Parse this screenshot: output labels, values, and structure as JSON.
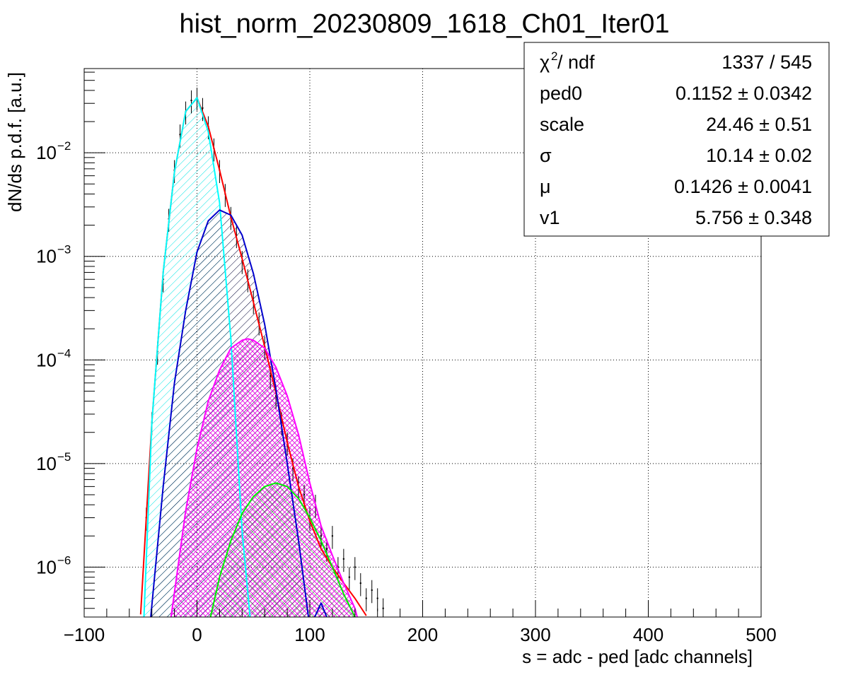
{
  "chart_data": {
    "type": "line",
    "title": "hist_norm_20230809_1618_Ch01_Iter01",
    "xlabel": "s = adc - ped [adc channels]",
    "ylabel": "dN/ds p.d.f. [a.u.]",
    "xlim": [
      -100,
      500
    ],
    "ylim": [
      3.3e-07,
      0.065
    ],
    "y_scale": "log",
    "grid": true,
    "x_ticks": [
      -100,
      0,
      100,
      200,
      300,
      400,
      500
    ],
    "x_tick_labels": [
      "−100",
      "0",
      "100",
      "200",
      "300",
      "400",
      "500"
    ],
    "y_ticks": [
      {
        "value": 1e-06,
        "base": "10",
        "exp": "−6"
      },
      {
        "value": 1e-05,
        "base": "10",
        "exp": "−5"
      },
      {
        "value": 0.0001,
        "base": "10",
        "exp": "−4"
      },
      {
        "value": 0.001,
        "base": "10",
        "exp": "−3"
      },
      {
        "value": 0.01,
        "base": "10",
        "exp": "−2"
      }
    ],
    "series": [
      {
        "color": "#ff0000",
        "style": "total-fit",
        "x": [
          -50,
          -40,
          -30,
          -20,
          -10,
          0,
          10,
          20,
          30,
          40,
          50,
          60,
          70,
          80,
          90,
          100,
          110,
          120,
          130,
          140,
          150
        ],
        "y": [
          3.5e-07,
          2.5e-05,
          0.0007,
          0.0065,
          0.025,
          0.034,
          0.018,
          0.0068,
          0.0024,
          0.00095,
          0.00036,
          0.000135,
          4.8e-05,
          1.6e-05,
          6e-06,
          2.8e-06,
          1.5e-06,
          1e-06,
          7e-07,
          5e-07,
          3.4e-07
        ]
      },
      {
        "color": "#00ffff",
        "style": "pedestal",
        "x": [
          -47,
          -40,
          -30,
          -20,
          -10,
          0,
          10,
          20,
          30,
          40,
          47
        ],
        "y": [
          3.3e-07,
          2.5e-05,
          0.0007,
          0.0065,
          0.025,
          0.034,
          0.016,
          0.0033,
          0.00016,
          2.2e-06,
          3.3e-07
        ]
      },
      {
        "color": "#0000cc",
        "style": "1-photon",
        "x": [
          -41,
          -30,
          -20,
          -10,
          0,
          10,
          20,
          30,
          40,
          50,
          60,
          70,
          80,
          90,
          100,
          110,
          115
        ],
        "y": [
          3.3e-07,
          6e-06,
          6e-05,
          0.0003,
          0.0011,
          0.0022,
          0.0028,
          0.0025,
          0.0016,
          0.00068,
          0.00022,
          5.2e-05,
          1e-05,
          1.8e-06,
          2.6e-07,
          4.5e-07,
          3.3e-07
        ]
      },
      {
        "color": "#ff00ff",
        "style": "2-photon",
        "x": [
          -23,
          -10,
          0,
          10,
          20,
          30,
          40,
          45,
          50,
          60,
          70,
          80,
          90,
          100,
          110,
          120,
          130,
          140,
          142
        ],
        "y": [
          3.3e-07,
          3.5e-06,
          1.4e-05,
          4e-05,
          8e-05,
          0.00013,
          0.000155,
          0.00016,
          0.000155,
          0.00013,
          8.5e-05,
          4.5e-05,
          1.9e-05,
          6.5e-06,
          2.5e-06,
          1.3e-06,
          7e-07,
          4e-07,
          3.3e-07
        ]
      },
      {
        "color": "#00ee00",
        "style": "3-photon",
        "x": [
          12,
          20,
          30,
          40,
          50,
          60,
          70,
          80,
          90,
          100,
          110,
          120,
          130,
          140
        ],
        "y": [
          3.3e-07,
          8e-07,
          1.8e-06,
          3.3e-06,
          4.8e-06,
          6e-06,
          6.5e-06,
          6e-06,
          4.6e-06,
          3e-06,
          1.8e-06,
          1e-06,
          5.5e-07,
          3.3e-07
        ]
      },
      {
        "color": "#000000",
        "style": "data-points",
        "x": [
          -45,
          -40,
          -35,
          -30,
          -25,
          -20,
          -15,
          -10,
          -5,
          0,
          5,
          10,
          15,
          20,
          25,
          30,
          35,
          40,
          45,
          50,
          55,
          60,
          65,
          70,
          75,
          80,
          85,
          90,
          95,
          100,
          105,
          110,
          115,
          120,
          125,
          130,
          135,
          140,
          145,
          150,
          155,
          160,
          165
        ],
        "y": [
          3e-06,
          2.5e-05,
          0.00012,
          0.0006,
          0.0023,
          0.0068,
          0.015,
          0.025,
          0.032,
          0.034,
          0.027,
          0.018,
          0.011,
          0.0068,
          0.004,
          0.0024,
          0.0016,
          0.0009,
          0.0006,
          0.00037,
          0.00023,
          0.000135,
          7e-05,
          4.5e-05,
          2.5e-05,
          1.6e-05,
          9e-06,
          6e-06,
          5e-06,
          3e-06,
          4e-06,
          2e-06,
          1.5e-06,
          2e-06,
          1e-06,
          1.2e-06,
          8e-07,
          1e-06,
          7e-07,
          5e-07,
          6e-07,
          5e-07,
          4e-07
        ]
      }
    ]
  },
  "stats_box": {
    "rows": [
      {
        "label": "χ",
        "label_sup": "2",
        "label_rest": " / ndf",
        "value": "1337 / 545"
      },
      {
        "label": "ped0",
        "value": "0.1152 ± 0.0342"
      },
      {
        "label": "scale",
        "value": "24.46 ± 0.51"
      },
      {
        "label": "σ",
        "value": "10.14 ± 0.02"
      },
      {
        "label": "μ",
        "value": "0.1426 ± 0.0041"
      },
      {
        "label": "v1",
        "value": "5.756 ± 0.348"
      }
    ]
  }
}
